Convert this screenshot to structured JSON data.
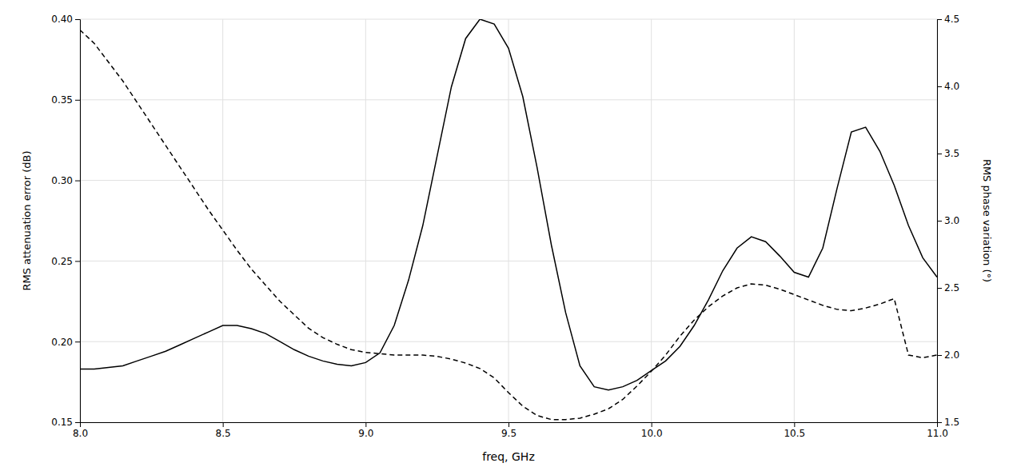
{
  "chart_data": {
    "type": "line",
    "xlabel": "freq, GHz",
    "ylabel": "RMS attenuation error (dB)",
    "y2label": "RMS phase variation (°)",
    "x": [
      8.0,
      8.05,
      8.1,
      8.15,
      8.2,
      8.25,
      8.3,
      8.35,
      8.4,
      8.45,
      8.5,
      8.55,
      8.6,
      8.65,
      8.7,
      8.75,
      8.8,
      8.85,
      8.9,
      8.95,
      9.0,
      9.05,
      9.1,
      9.15,
      9.2,
      9.25,
      9.3,
      9.35,
      9.4,
      9.45,
      9.5,
      9.55,
      9.6,
      9.65,
      9.7,
      9.75,
      9.8,
      9.85,
      9.9,
      9.95,
      10.0,
      10.05,
      10.1,
      10.15,
      10.2,
      10.25,
      10.3,
      10.35,
      10.4,
      10.45,
      10.5,
      10.55,
      10.6,
      10.65,
      10.7,
      10.75,
      10.8,
      10.85,
      10.9,
      10.95,
      11.0
    ],
    "series": [
      {
        "color": "#000000",
        "line_style": "solid",
        "values": [
          0.183,
          0.183,
          0.184,
          0.185,
          0.188,
          0.191,
          0.194,
          0.198,
          0.202,
          0.206,
          0.21,
          0.21,
          0.208,
          0.205,
          0.2,
          0.195,
          0.191,
          0.188,
          0.186,
          0.185,
          0.187,
          0.193,
          0.21,
          0.238,
          0.272,
          0.315,
          0.358,
          0.388,
          0.4,
          0.397,
          0.382,
          0.352,
          0.308,
          0.26,
          0.218,
          0.185,
          0.172,
          0.17,
          0.172,
          0.176,
          0.182,
          0.188,
          0.197,
          0.21,
          0.226,
          0.244,
          0.258,
          0.265,
          0.262,
          0.253,
          0.243,
          0.24,
          0.258,
          0.295,
          0.33,
          0.333,
          0.318,
          0.297,
          0.272,
          0.252,
          0.24
        ]
      },
      {
        "color": "#000000",
        "line_style": "dashed",
        "axis": "y2",
        "values": [
          4.42,
          4.32,
          4.18,
          4.04,
          3.88,
          3.72,
          3.56,
          3.4,
          3.24,
          3.08,
          2.93,
          2.78,
          2.64,
          2.52,
          2.4,
          2.3,
          2.2,
          2.13,
          2.08,
          2.04,
          2.02,
          2.01,
          2.0,
          2.0,
          2.0,
          1.99,
          1.97,
          1.94,
          1.9,
          1.83,
          1.72,
          1.62,
          1.55,
          1.52,
          1.52,
          1.53,
          1.56,
          1.6,
          1.67,
          1.77,
          1.88,
          2.0,
          2.14,
          2.26,
          2.36,
          2.44,
          2.5,
          2.53,
          2.52,
          2.49,
          2.45,
          2.41,
          2.37,
          2.34,
          2.33,
          2.35,
          2.38,
          2.42,
          2.0,
          1.98,
          2.0
        ]
      }
    ],
    "xlim": [
      8.0,
      11.0
    ],
    "xticks": [
      {
        "value": 8.0,
        "label": "8.0"
      },
      8.5,
      {
        "value": 9.0,
        "label": "9.0"
      },
      9.5,
      {
        "value": 10.0,
        "label": "10.0"
      },
      10.5,
      {
        "value": 11.0,
        "label": "11.0"
      }
    ],
    "ylim": [
      0.15,
      0.4
    ],
    "yticks": [
      0.15,
      {
        "value": 0.2,
        "label": "0.20"
      },
      0.25,
      {
        "value": 0.3,
        "label": "0.30"
      },
      0.35,
      {
        "value": 0.4,
        "label": "0.40"
      }
    ],
    "y2lim": [
      1.5,
      4.5
    ],
    "y2ticks": [
      1.5,
      {
        "value": 2.0,
        "label": "2.0"
      },
      2.5,
      {
        "value": 3.0,
        "label": "3.0"
      },
      3.5,
      {
        "value": 4.0,
        "label": "4.0"
      },
      4.5
    ],
    "grid": true
  }
}
